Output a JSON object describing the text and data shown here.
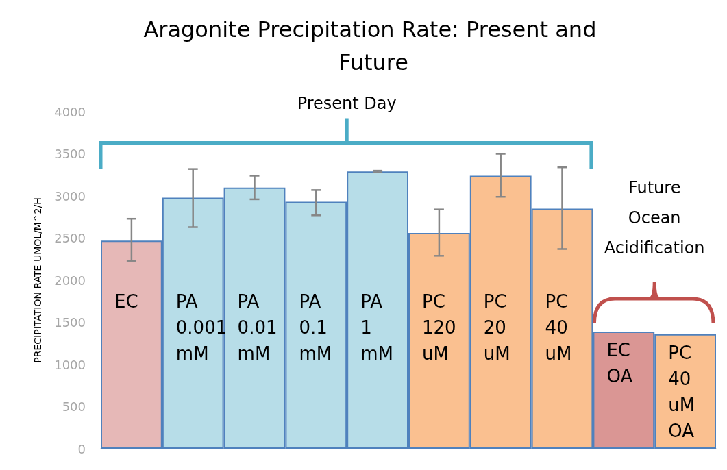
{
  "chart_data": {
    "type": "bar",
    "title": "Aragonite Precipitation Rate: Present and Future",
    "ylabel": "PRECIPITATION RATE UMOL/M^2/H",
    "categories": [
      "EC",
      "PA 0.001 mM",
      "PA 0.01 mM",
      "PA 0.1 mM",
      "PA 1 mM",
      "PC 120 uM",
      "PC 20 uM",
      "PC 40 uM",
      "EC OA",
      "PC 40 uM OA"
    ],
    "values": [
      2470,
      2980,
      3100,
      2930,
      3290,
      2560,
      3240,
      2850,
      1390,
      1360
    ],
    "colors": [
      "#e6b8b7",
      "#b7dde8",
      "#b7dde8",
      "#b7dde8",
      "#b7dde8",
      "#fac090",
      "#fac090",
      "#fac090",
      "#da9694",
      "#fac090"
    ],
    "errors": [
      [
        2230,
        2730
      ],
      [
        2630,
        3320
      ],
      [
        2960,
        3240
      ],
      [
        2770,
        3070
      ],
      [
        3280,
        3300
      ],
      [
        2290,
        2840
      ],
      [
        2990,
        3500
      ],
      [
        2370,
        3340
      ],
      null,
      null
    ],
    "ylim": [
      0,
      4000
    ],
    "yticks": [
      0,
      500,
      1000,
      1500,
      2000,
      2500,
      3000,
      3500,
      4000
    ],
    "grid": false,
    "annotations": [
      "Present Day",
      "Future Ocean Acidification"
    ]
  }
}
